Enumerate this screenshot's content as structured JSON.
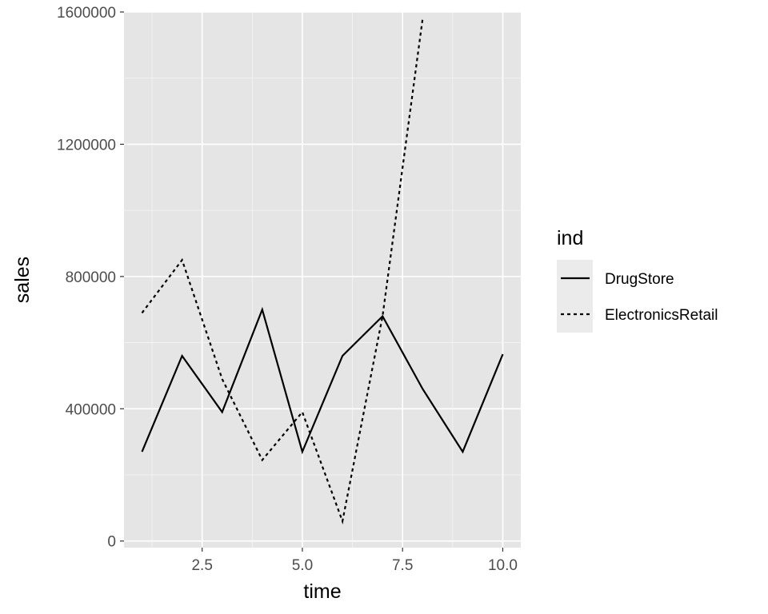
{
  "chart_data": {
    "type": "line",
    "xlabel": "time",
    "ylabel": "sales",
    "xlim": [
      0.55,
      10.45
    ],
    "ylim": [
      -20000,
      1600000
    ],
    "x_ticks": [
      2.5,
      5.0,
      7.5,
      10.0
    ],
    "x_tick_labels": [
      "2.5",
      "5.0",
      "7.5",
      "10.0"
    ],
    "y_ticks": [
      0,
      400000,
      800000,
      1200000,
      1600000
    ],
    "y_tick_labels": [
      "0",
      "400000",
      "800000",
      "1200000",
      "1600000"
    ],
    "grid": true,
    "legend": {
      "title": "ind",
      "position": "right"
    },
    "panel_background": "#e5e5e5",
    "grid_color": "#ffffff",
    "line_color": "#000000",
    "series": [
      {
        "name": "DrugStore",
        "linetype": "solid",
        "x": [
          1,
          2,
          3,
          4,
          5,
          6,
          7,
          8,
          9,
          10
        ],
        "values": [
          270000,
          560000,
          390000,
          700000,
          270000,
          560000,
          680000,
          460000,
          270000,
          565000
        ]
      },
      {
        "name": "ElectronicsRetail",
        "linetype": "dashed",
        "x": [
          1,
          2,
          3,
          4,
          5,
          6,
          7,
          8
        ],
        "values": [
          690000,
          850000,
          490000,
          245000,
          390000,
          60000,
          680000,
          1580000
        ]
      }
    ]
  }
}
